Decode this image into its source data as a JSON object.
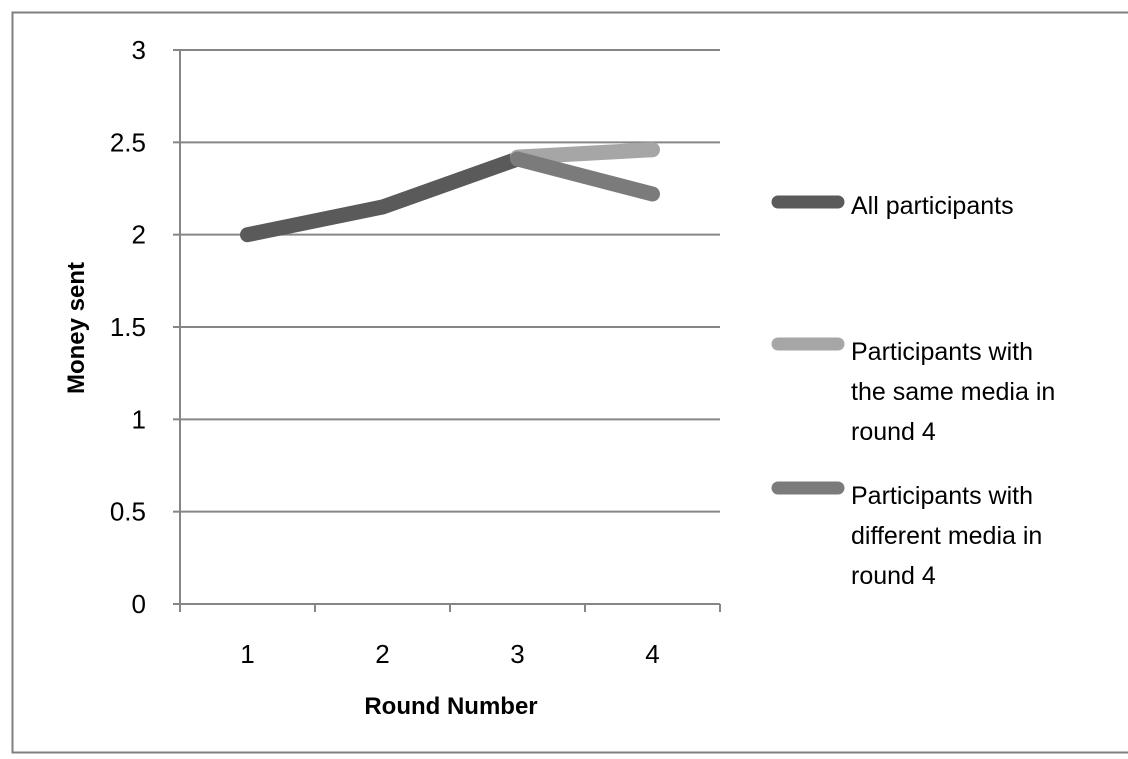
{
  "chart_data": {
    "type": "line",
    "title": "",
    "xlabel": "Round Number",
    "ylabel": "Money sent",
    "categories": [
      "1",
      "2",
      "3",
      "4"
    ],
    "y_ticks": [
      "0",
      "0.5",
      "1",
      "1.5",
      "2",
      "2.5",
      "3"
    ],
    "ylim": [
      0,
      3
    ],
    "grid": true,
    "legend_position": "right",
    "series": [
      {
        "name": "All participants",
        "color": "#5a5a5a",
        "x": [
          "1",
          "2",
          "3"
        ],
        "values": [
          2.0,
          2.15,
          2.41
        ]
      },
      {
        "name": "Participants with the same media in round 4",
        "legend_lines": [
          "Participants with",
          "the same media in",
          "round 4"
        ],
        "color": "#a6a6a6",
        "x": [
          "3",
          "4"
        ],
        "values": [
          2.42,
          2.46
        ]
      },
      {
        "name": "Participants with different media in round 4",
        "legend_lines": [
          "Participants with",
          "different media in",
          "round 4"
        ],
        "color": "#7b7b7b",
        "x": [
          "3",
          "4"
        ],
        "values": [
          2.41,
          2.22
        ]
      }
    ]
  }
}
